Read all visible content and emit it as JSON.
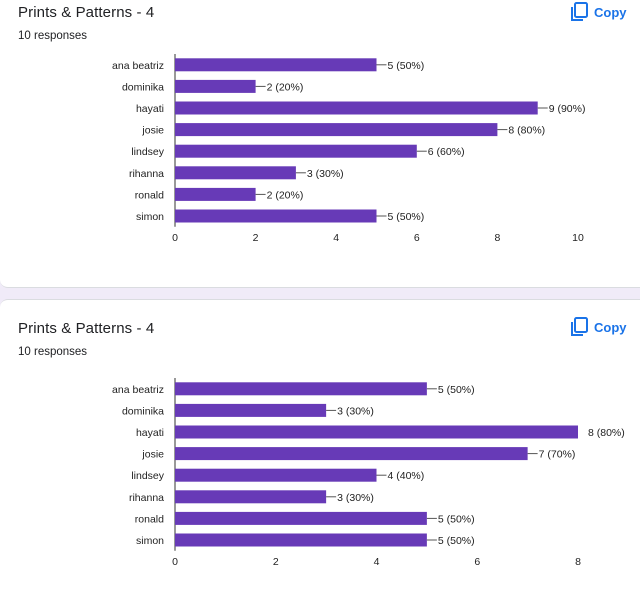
{
  "colors": {
    "bar": "#673ab7",
    "accent": "#1a73e8",
    "page_bg": "#f0ebf8",
    "text": "#202124"
  },
  "cards": [
    {
      "title": "Prints & Patterns - 4",
      "responses": "10 responses",
      "copy_label": "Copy",
      "copy_icon": "copy-icon"
    },
    {
      "title": "Prints & Patterns - 4",
      "responses": "10 responses",
      "copy_label": "Copy",
      "copy_icon": "copy-icon"
    }
  ],
  "chart_data": [
    {
      "type": "bar",
      "orientation": "horizontal",
      "categories": [
        "ana beatriz",
        "dominika",
        "hayati",
        "josie",
        "lindsey",
        "rihanna",
        "ronald",
        "simon"
      ],
      "values": [
        5,
        2,
        9,
        8,
        6,
        3,
        2,
        5
      ],
      "labels": [
        "5 (50%)",
        "2 (20%)",
        "9 (90%)",
        "8 (80%)",
        "6 (60%)",
        "3 (30%)",
        "2 (20%)",
        "5 (50%)"
      ],
      "xlim": [
        0,
        10
      ],
      "xticks": [
        "0",
        "2",
        "4",
        "6",
        "8",
        "10"
      ]
    },
    {
      "type": "bar",
      "orientation": "horizontal",
      "categories": [
        "ana beatriz",
        "dominika",
        "hayati",
        "josie",
        "lindsey",
        "rihanna",
        "ronald",
        "simon"
      ],
      "values": [
        5,
        3,
        8,
        7,
        4,
        3,
        5,
        5
      ],
      "labels": [
        "5 (50%)",
        "3 (30%)",
        "8 (80%)",
        "7 (70%)",
        "4 (40%)",
        "3 (30%)",
        "5 (50%)",
        "5 (50%)"
      ],
      "xlim": [
        0,
        8
      ],
      "xticks": [
        "0",
        "2",
        "4",
        "6",
        "8"
      ]
    }
  ]
}
